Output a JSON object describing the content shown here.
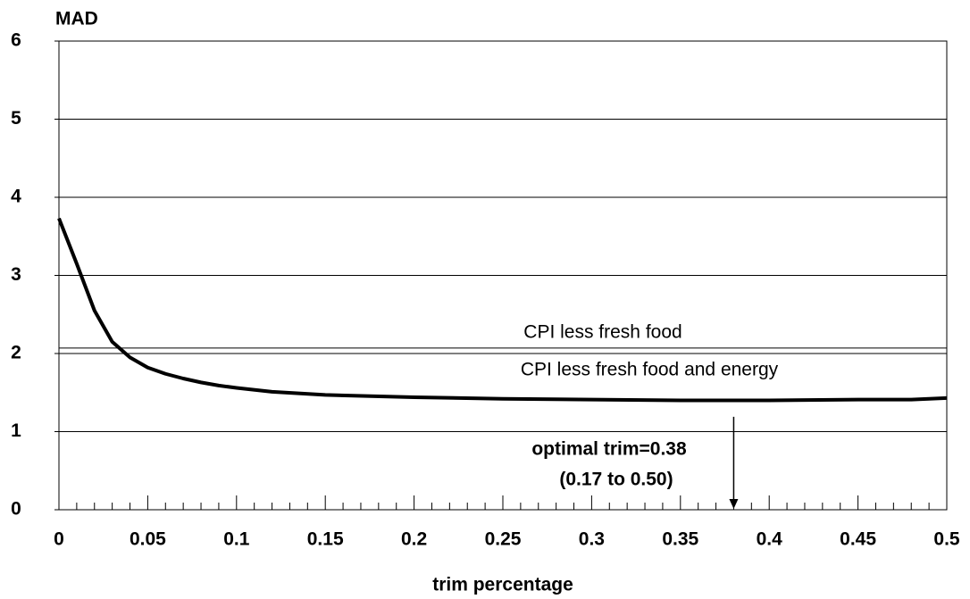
{
  "chart_data": {
    "type": "line",
    "ylabel": "MAD",
    "xlabel": "trim percentage",
    "x": [
      0,
      0.01,
      0.02,
      0.03,
      0.04,
      0.05,
      0.06,
      0.07,
      0.08,
      0.09,
      0.1,
      0.12,
      0.15,
      0.2,
      0.25,
      0.3,
      0.35,
      0.38,
      0.4,
      0.45,
      0.48,
      0.5
    ],
    "values": [
      3.73,
      3.15,
      2.55,
      2.15,
      1.95,
      1.82,
      1.74,
      1.68,
      1.63,
      1.59,
      1.56,
      1.51,
      1.47,
      1.44,
      1.42,
      1.41,
      1.4,
      1.4,
      1.4,
      1.41,
      1.41,
      1.43
    ],
    "color": "#000000",
    "xlim": [
      0,
      0.5
    ],
    "ylim": [
      0,
      6
    ],
    "xticks": [
      0,
      0.05,
      0.1,
      0.15,
      0.2,
      0.25,
      0.3,
      0.35,
      0.4,
      0.45,
      0.5
    ],
    "xminorticks": [
      0.01,
      0.02,
      0.03,
      0.04,
      0.06,
      0.07,
      0.08,
      0.09,
      0.11,
      0.12,
      0.13,
      0.14,
      0.16,
      0.17,
      0.18,
      0.19,
      0.21,
      0.22,
      0.23,
      0.24,
      0.26,
      0.27,
      0.28,
      0.29,
      0.31,
      0.32,
      0.33,
      0.34,
      0.36,
      0.37,
      0.38,
      0.39,
      0.41,
      0.42,
      0.43,
      0.44,
      0.46,
      0.47,
      0.48,
      0.49
    ],
    "yticks": [
      0,
      1,
      2,
      3,
      4,
      5,
      6
    ],
    "grid": true,
    "reference_lines": [
      {
        "label": "CPI less fresh food",
        "value": 2.07
      },
      {
        "label": "CPI less fresh food and energy",
        "value": 2.0
      }
    ],
    "annotations": [
      {
        "text": "optimal trim=0.38"
      },
      {
        "text": "(0.17 to 0.50)"
      }
    ],
    "arrow": {
      "x": 0.38,
      "y_start": 1.19,
      "y_end": 0
    }
  }
}
